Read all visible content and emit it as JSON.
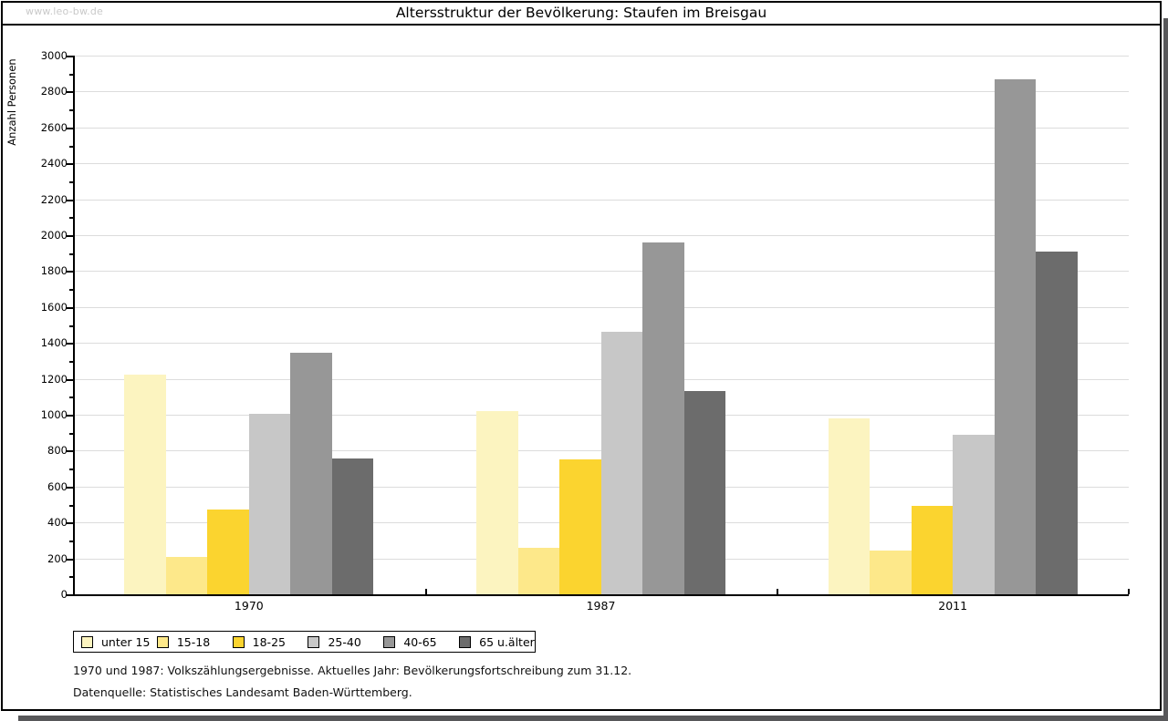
{
  "page": {
    "watermark": "www.leo-bw.de"
  },
  "chart_data": {
    "type": "bar",
    "title": "Altersstruktur der Bevölkerung: Staufen im Breisgau",
    "xlabel": "",
    "ylabel": "Anzahl Personen",
    "ylim": [
      0,
      3000
    ],
    "ytick_step": 200,
    "yminor_step": 100,
    "grid": true,
    "legend_position": "bottom-left",
    "categories": [
      "1970",
      "1987",
      "2011"
    ],
    "series": [
      {
        "name": "unter 15",
        "color": "#fcf4c0",
        "values": [
          1225,
          1020,
          980
        ]
      },
      {
        "name": "15-18",
        "color": "#fde88a",
        "values": [
          210,
          260,
          245
        ]
      },
      {
        "name": "18-25",
        "color": "#fbd42f",
        "values": [
          470,
          750,
          490
        ]
      },
      {
        "name": "25-40",
        "color": "#c7c7c7",
        "values": [
          1005,
          1460,
          890
        ]
      },
      {
        "name": "40-65",
        "color": "#979797",
        "values": [
          1345,
          1960,
          2870
        ]
      },
      {
        "name": "65 u.älter",
        "color": "#6c6c6c",
        "values": [
          755,
          1130,
          1910
        ]
      }
    ]
  },
  "footnotes": {
    "line1": "1970 und 1987: Volkszählungsergebnisse. Aktuelles Jahr: Bevölkerungsfortschreibung zum 31.12.",
    "line2": "Datenquelle: Statistisches Landesamt Baden-Württemberg."
  },
  "colors": {
    "gridline": "#dcdcdc",
    "axis": "#000000",
    "watermark": "#c9c9c9",
    "shadow": "#58585a",
    "background": "#ffffff"
  }
}
